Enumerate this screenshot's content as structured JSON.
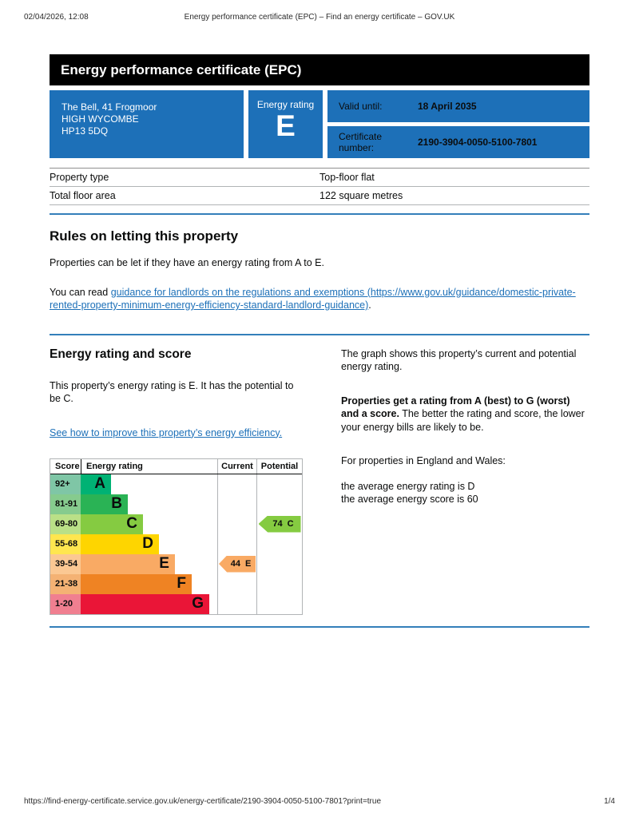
{
  "print_header": {
    "datetime": "02/04/2026, 12:08",
    "title": "Energy performance certificate (EPC) – Find an energy certificate – GOV.UK"
  },
  "banner": {
    "title": "Energy performance certificate (EPC)"
  },
  "summary_box": {
    "address_line1": "The Bell, 41 Frogmoor",
    "address_line2": "HIGH WYCOMBE",
    "address_line3": "HP13 5DQ",
    "energy_rating_label": "Energy rating",
    "energy_rating_value": "E",
    "valid_until_label": "Valid until:",
    "valid_until_value": "18 April 2035",
    "certificate_number_label": "Certificate number:",
    "certificate_number_value": "2190-3904-0050-5100-7801"
  },
  "property_summary": {
    "rows": [
      {
        "label": "Property type",
        "value": "Top-floor flat"
      },
      {
        "label": "Total floor area",
        "value": "122 square metres"
      }
    ]
  },
  "rules_section": {
    "heading": "Rules on letting this property",
    "para1": "Properties can be let if they have an energy rating from A to E.",
    "para2_prefix": "You can read ",
    "para2_link": "guidance for landlords on the regulations and exemptions (https://www.gov.uk/guidance/domestic-private-rented-property-minimum-energy-efficiency-standard-landlord-guidance)",
    "para2_suffix": "."
  },
  "rating_section": {
    "heading": "Energy rating and score",
    "para1": "This property’s energy rating is E. It has the potential to be C.",
    "improve_link": "See how to improve this property’s energy efficiency.",
    "right_para1": "The graph shows this property’s current and potential energy rating.",
    "right_para2_bold": "Properties get a rating from A (best) to G (worst) and a score.",
    "right_para2_rest": " The better the rating and score, the lower your energy bills are likely to be.",
    "right_para3": "For properties in England and Wales:",
    "right_line1": "the average energy rating is D",
    "right_line2": "the average energy score is 60"
  },
  "chart_data": {
    "type": "bar",
    "title": "Energy rating and score chart",
    "headers": {
      "score": "Score",
      "rating": "Energy rating",
      "current": "Current",
      "potential": "Potential"
    },
    "bands": [
      {
        "score": "92+",
        "letter": "A",
        "bar_color": "#00b274",
        "tint_color": "#7fc6a6",
        "width_pct": 22.2
      },
      {
        "score": "81-91",
        "letter": "B",
        "bar_color": "#2ab355",
        "tint_color": "#86cb8e",
        "width_pct": 34.5
      },
      {
        "score": "69-80",
        "letter": "C",
        "bar_color": "#85cb41",
        "tint_color": "#bae087",
        "width_pct": 45.6
      },
      {
        "score": "55-68",
        "letter": "D",
        "bar_color": "#fed500",
        "tint_color": "#ffe64f",
        "width_pct": 57.3
      },
      {
        "score": "39-54",
        "letter": "E",
        "bar_color": "#f9aa64",
        "tint_color": "#fbc893",
        "width_pct": 69.0
      },
      {
        "score": "21-38",
        "letter": "F",
        "bar_color": "#ef8323",
        "tint_color": "#f4b274",
        "width_pct": 81.3
      },
      {
        "score": "1-20",
        "letter": "G",
        "bar_color": "#ea1537",
        "tint_color": "#f07f90",
        "width_pct": 94.2
      }
    ],
    "current": {
      "score": "44",
      "letter": "E",
      "color": "#f9aa64"
    },
    "potential": {
      "score": "74",
      "letter": "C",
      "color": "#85cb41"
    }
  },
  "footer": {
    "url": "https://find-energy-certificate.service.gov.uk/energy-certificate/2190-3904-0050-5100-7801?print=true",
    "page": "1/4"
  },
  "colors": {
    "govuk_blue": "#1d70b8",
    "banner_black": "#000000"
  }
}
